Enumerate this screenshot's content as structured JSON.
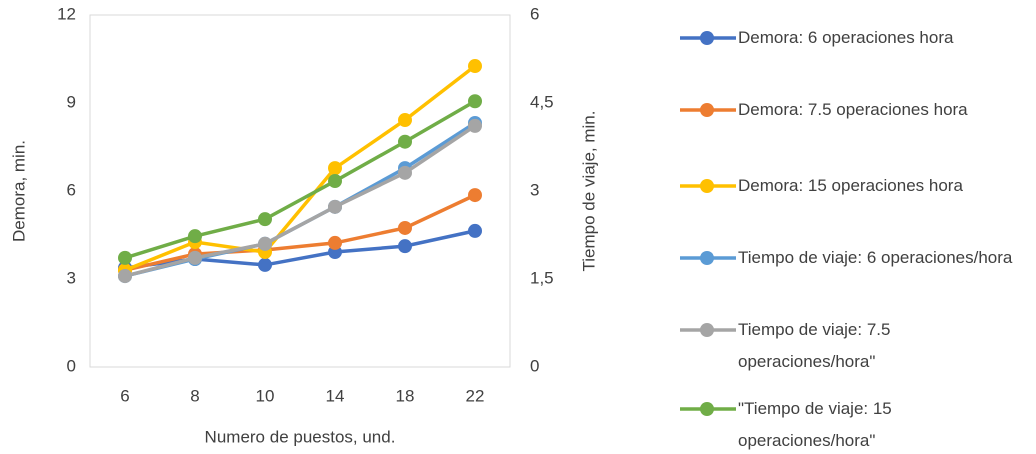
{
  "chart_data": {
    "type": "line",
    "categories": [
      "6",
      "8",
      "10",
      "14",
      "18",
      "22"
    ],
    "x_label": "Numero de puestos, und.",
    "y_label": "Demora, min.",
    "y2_label": "Tiempo de viaje, min.",
    "ylim": [
      0,
      12
    ],
    "yticks": [
      0,
      3,
      6,
      9,
      12
    ],
    "y2lim": [
      0,
      6
    ],
    "y2ticks": [
      0,
      {
        "value": 1.5,
        "label": "1,5"
      },
      3,
      {
        "value": 4.5,
        "label": "4,5"
      },
      6
    ],
    "legend": "right",
    "series": [
      {
        "name": "Demora: 6 operaciones hora",
        "color": "#4472c4",
        "values": [
          3.38,
          3.68,
          3.48,
          3.92,
          4.12,
          4.64
        ]
      },
      {
        "name": "Demora: 7.5 operaciones hora",
        "color": "#ed7d31",
        "values": [
          3.3,
          3.85,
          3.99,
          4.23,
          4.74,
          5.86
        ]
      },
      {
        "name": "Demora: 15 operaciones hora",
        "color": "#ffc000",
        "values": [
          3.3,
          4.26,
          3.92,
          6.78,
          8.42,
          10.26
        ]
      },
      {
        "name": "Tiempo de viaje: 6 operaciones/hora",
        "color": "#5b9bd5",
        "axis": "y2",
        "values": [
          1.55,
          1.84,
          2.1,
          2.73,
          3.39,
          4.16
        ]
      },
      {
        "name": "Tiempo de viaje: 7.5 operaciones/hora\"",
        "color": "#a5a5a5",
        "axis": "y2",
        "values": [
          1.55,
          1.86,
          2.1,
          2.73,
          3.31,
          4.11
        ]
      },
      {
        "name": "\"Tiempo de viaje: 15 operaciones/hora\"",
        "color": "#70ad47",
        "axis": "y2",
        "values": [
          1.86,
          2.23,
          2.52,
          3.17,
          3.84,
          4.53
        ]
      }
    ]
  }
}
